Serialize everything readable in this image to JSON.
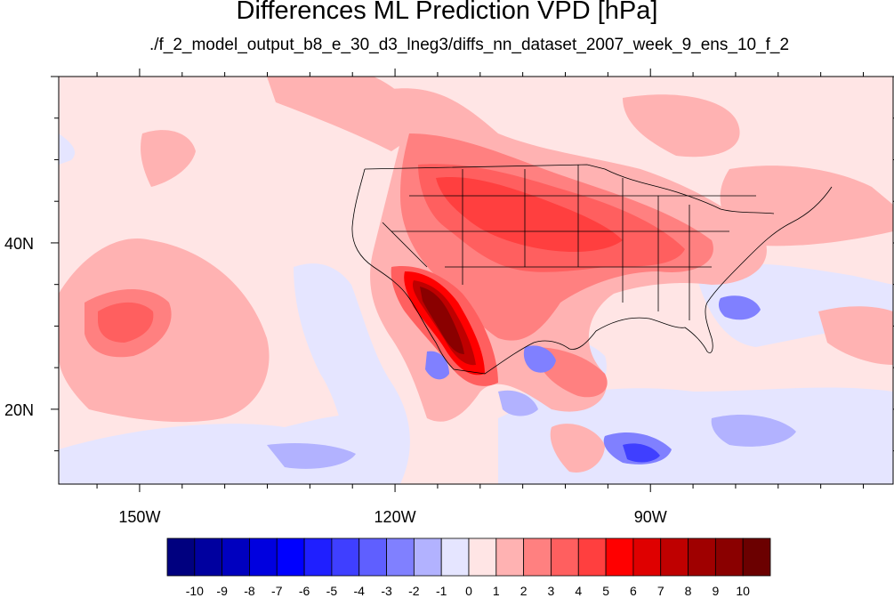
{
  "title": "Differences ML Prediction VPD [hPa]",
  "subtitle": "./f_2_model_output_b8_e_30_d3_lneg3/diffs_nn_dataset_2007_week_9_ens_10_f_2",
  "lon_range": [
    -159.5,
    -61.5
  ],
  "lat_range": [
    11,
    60
  ],
  "lon_labels": [
    {
      "lon": -150,
      "text": "150W"
    },
    {
      "lon": -120,
      "text": "120W"
    },
    {
      "lon": -90,
      "text": "90W"
    }
  ],
  "lat_labels": [
    {
      "lat": 40,
      "text": "40N"
    },
    {
      "lat": 20,
      "text": "20N"
    }
  ],
  "colorbar": {
    "colors": [
      "#00007f",
      "#00009f",
      "#0000bf",
      "#0000df",
      "#0000ff",
      "#1f1fff",
      "#3f3fff",
      "#5f5fff",
      "#8080ff",
      "#b2b2ff",
      "#e5e5ff",
      "#ffe5e5",
      "#ffb2b2",
      "#ff8080",
      "#ff5f5f",
      "#ff3f3f",
      "#ff0000",
      "#df0000",
      "#bf0000",
      "#9f0000",
      "#8a0000",
      "#6b0000"
    ],
    "labels": [
      "-10",
      "-9",
      "-8",
      "-7",
      "-6",
      "-5",
      "-4",
      "-3",
      "-2",
      "-1",
      "0",
      "1",
      "2",
      "3",
      "4",
      "5",
      "6",
      "7",
      "8",
      "9",
      "10"
    ]
  },
  "colors": {
    "background_field": "#ffe5e5",
    "light_red": "#ffb2b2",
    "medium_red": "#ff8080",
    "red": "#ff5f5f",
    "strong_red": "#ff3f3f",
    "dark_red": "#bf0000",
    "light_blue": "#e5e5ff",
    "blue": "#b2b2ff",
    "medium_blue": "#8080ff",
    "dark_blue": "#3f3fff"
  }
}
